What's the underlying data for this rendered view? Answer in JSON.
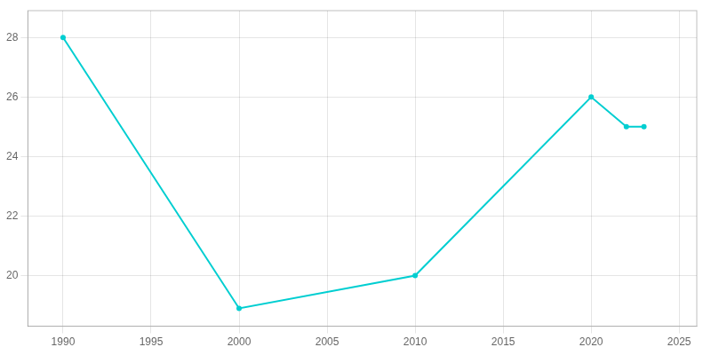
{
  "chart_data": {
    "type": "line",
    "x": [
      1990,
      2000,
      2010,
      2020,
      2022,
      2023
    ],
    "values": [
      28,
      18.9,
      20,
      26,
      25,
      25
    ],
    "color": "#00CED1",
    "marker": "circle",
    "xlim": [
      1988,
      2026
    ],
    "xticks": [
      1990,
      1995,
      2000,
      2005,
      2010,
      2015,
      2020,
      2025
    ],
    "ylim": [
      18.3,
      28.9
    ],
    "yticks": [
      20,
      22,
      24,
      26,
      28
    ],
    "grid": true
  }
}
